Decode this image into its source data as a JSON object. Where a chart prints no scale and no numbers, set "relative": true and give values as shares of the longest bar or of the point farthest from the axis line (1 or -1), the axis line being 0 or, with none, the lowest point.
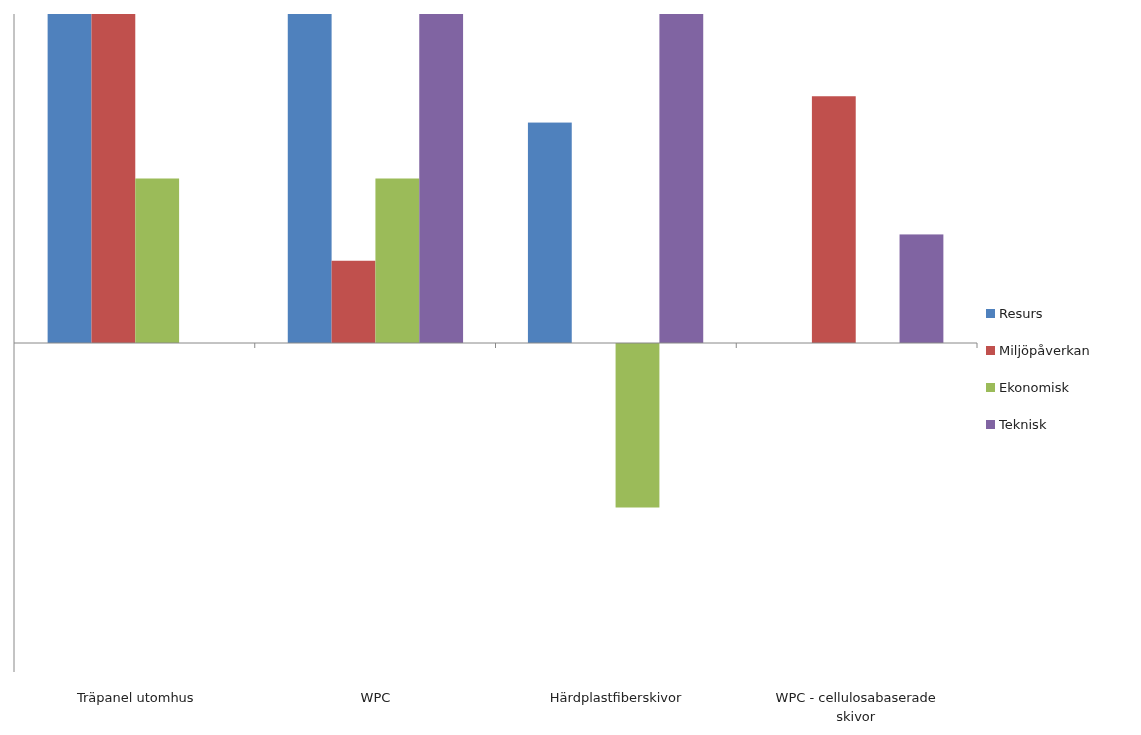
{
  "chart_data": {
    "type": "bar",
    "relative": true,
    "legend": "right",
    "categories": [
      "Träpanel utomhus",
      "WPC",
      "Härdplastfiberskivor",
      "WPC - cellulosabaserade skivor"
    ],
    "series": [
      {
        "name": "Resurs",
        "color": "#4f81bd",
        "values": [
          1,
          1,
          0.67,
          0
        ]
      },
      {
        "name": "Miljöpåverkan",
        "color": "#c0504d",
        "values": [
          1,
          0.25,
          0,
          0.75
        ]
      },
      {
        "name": "Ekonomisk",
        "color": "#9bbb59",
        "values": [
          0.5,
          0.5,
          -0.5,
          0
        ]
      },
      {
        "name": "Teknisk",
        "color": "#8064a2",
        "values": [
          0,
          1,
          1,
          0.33
        ]
      }
    ]
  }
}
